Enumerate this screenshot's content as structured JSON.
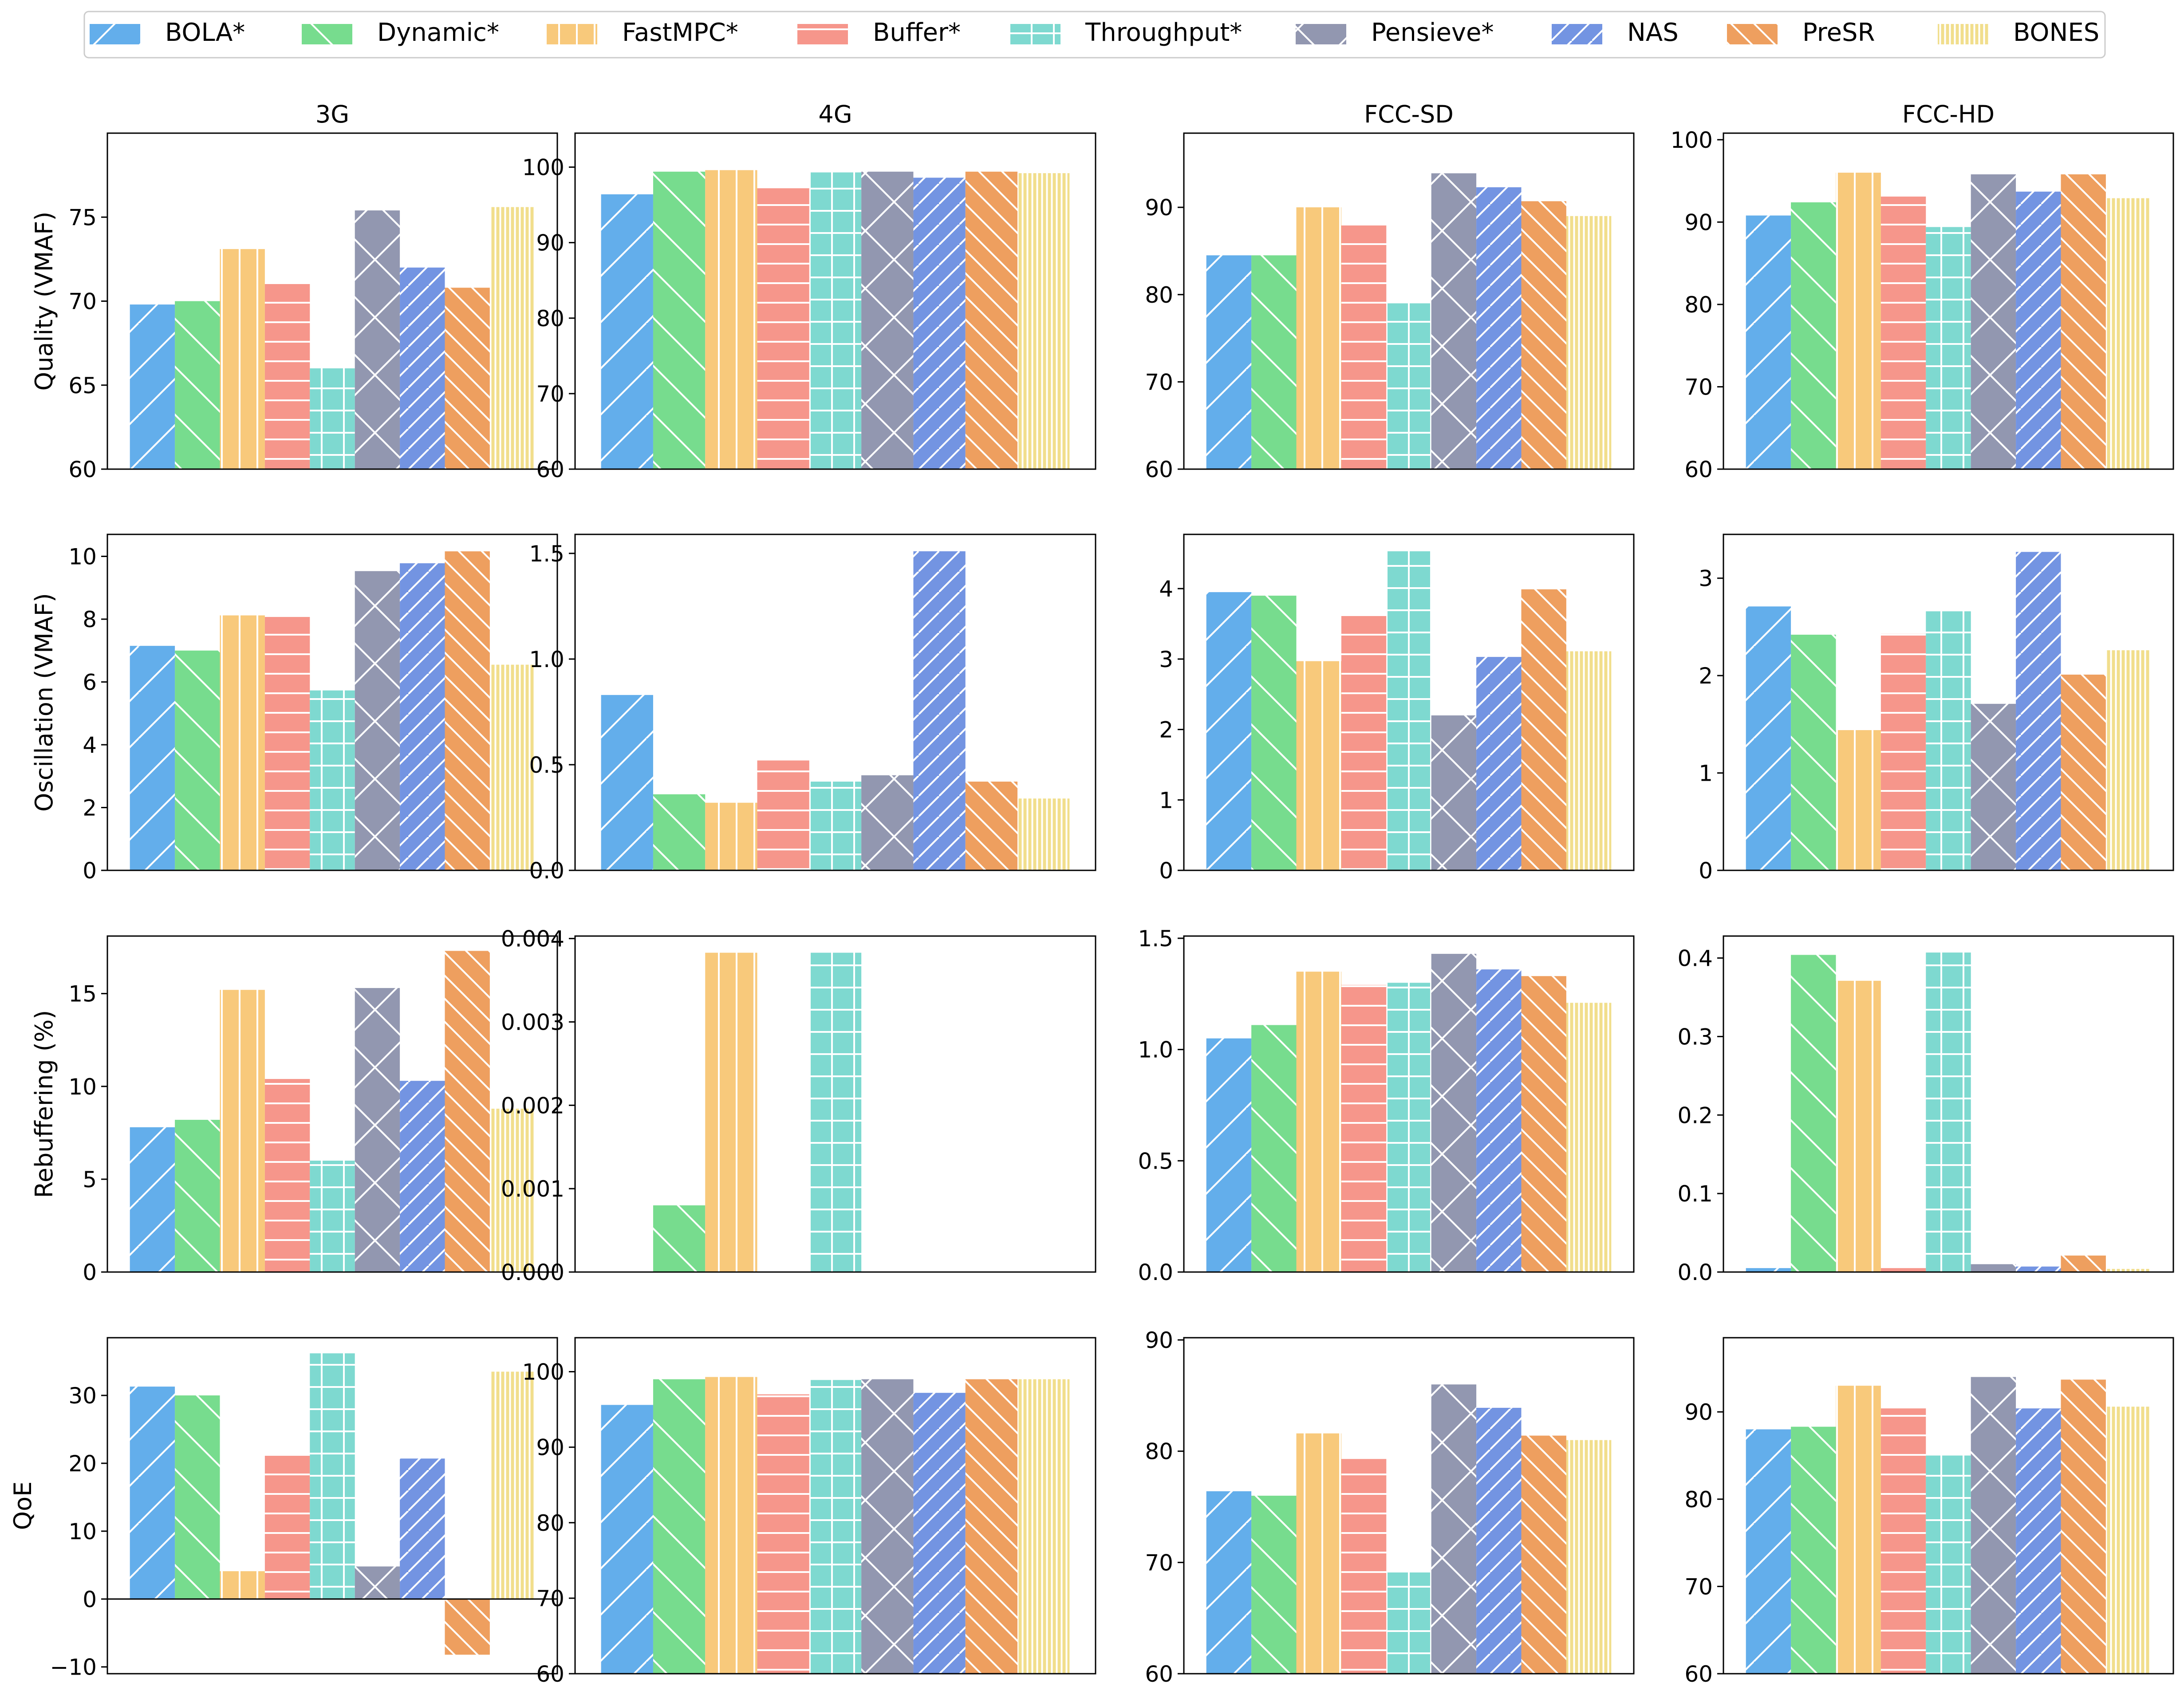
{
  "legend": {
    "items": [
      {
        "label": "BOLA*",
        "color": "#63aeeb",
        "hatch": "/"
      },
      {
        "label": "Dynamic*",
        "color": "#77dc8e",
        "hatch": "\\"
      },
      {
        "label": "FastMPC*",
        "color": "#f8c97b",
        "hatch": "|"
      },
      {
        "label": "Buffer*",
        "color": "#f6968b",
        "hatch": "-"
      },
      {
        "label": "Throughput*",
        "color": "#7ed9d0",
        "hatch": "+"
      },
      {
        "label": "Pensieve*",
        "color": "#9297b0",
        "hatch": "x"
      },
      {
        "label": "NAS",
        "color": "#7394e2",
        "hatch": "//"
      },
      {
        "label": "PreSR",
        "color": "#ee9f5f",
        "hatch": "\\\\"
      },
      {
        "label": "BONES",
        "color": "#f1de8c",
        "hatch": "||"
      }
    ]
  },
  "chart_data": {
    "type": "bar",
    "columns": [
      "3G",
      "4G",
      "FCC-SD",
      "FCC-HD"
    ],
    "rows": [
      "Quality (VMAF)",
      "Oscillation (VMAF)",
      "Rebuffering (%)",
      "QoE"
    ],
    "series_names": [
      "BOLA*",
      "Dynamic*",
      "FastMPC*",
      "Buffer*",
      "Throughput*",
      "Pensieve*",
      "NAS",
      "PreSR",
      "BONES"
    ],
    "panels": [
      {
        "row": 0,
        "col": 0,
        "ylabel": "Quality (VMAF)",
        "ylim": [
          60,
          80
        ],
        "yticks": [
          60,
          65,
          70,
          75
        ],
        "tick_labels": [
          "60",
          "65",
          "70",
          "75"
        ],
        "values": [
          69.8,
          70.0,
          73.1,
          71.1,
          66.0,
          75.4,
          72.0,
          70.8,
          75.6
        ]
      },
      {
        "row": 0,
        "col": 1,
        "ylabel": "",
        "ylim": [
          60,
          104.5
        ],
        "yticks": [
          60,
          70,
          80,
          90,
          100
        ],
        "tick_labels": [
          "60",
          "70",
          "80",
          "90",
          "100"
        ],
        "values": [
          96.4,
          99.4,
          99.6,
          97.2,
          99.3,
          99.4,
          98.6,
          99.4,
          99.2
        ]
      },
      {
        "row": 0,
        "col": 2,
        "ylabel": "",
        "ylim": [
          60,
          98.5
        ],
        "yticks": [
          60,
          70,
          80,
          90
        ],
        "tick_labels": [
          "60",
          "70",
          "80",
          "90"
        ],
        "values": [
          84.5,
          84.5,
          90.0,
          88.1,
          79.0,
          93.9,
          92.3,
          90.7,
          89.0
        ]
      },
      {
        "row": 0,
        "col": 3,
        "ylabel": "",
        "ylim": [
          60,
          100.8
        ],
        "yticks": [
          60,
          70,
          80,
          90,
          100
        ],
        "tick_labels": [
          "60",
          "70",
          "80",
          "90",
          "100"
        ],
        "values": [
          90.8,
          92.4,
          96.0,
          93.1,
          89.4,
          95.8,
          93.7,
          95.8,
          92.9
        ]
      },
      {
        "row": 1,
        "col": 0,
        "ylabel": "Oscillation (VMAF)",
        "ylim": [
          0,
          10.7
        ],
        "yticks": [
          0,
          2,
          4,
          6,
          8,
          10
        ],
        "tick_labels": [
          "0",
          "2",
          "4",
          "6",
          "8",
          "10"
        ],
        "values": [
          7.15,
          7.0,
          8.12,
          8.07,
          5.73,
          9.53,
          9.78,
          10.16,
          6.55
        ]
      },
      {
        "row": 1,
        "col": 1,
        "ylabel": "",
        "ylim": [
          0,
          1.59
        ],
        "yticks": [
          0,
          0.5,
          1.0,
          1.5
        ],
        "tick_labels": [
          "0.0",
          "0.5",
          "1.0",
          "1.5"
        ],
        "values": [
          0.83,
          0.36,
          0.32,
          0.52,
          0.42,
          0.45,
          1.51,
          0.42,
          0.34
        ]
      },
      {
        "row": 1,
        "col": 2,
        "ylabel": "",
        "ylim": [
          0,
          4.77
        ],
        "yticks": [
          0,
          1,
          2,
          3,
          4
        ],
        "tick_labels": [
          "0",
          "1",
          "2",
          "3",
          "4"
        ],
        "values": [
          3.95,
          3.9,
          2.97,
          3.63,
          4.53,
          2.2,
          3.03,
          3.99,
          3.11
        ]
      },
      {
        "row": 1,
        "col": 3,
        "ylabel": "",
        "ylim": [
          0,
          3.45
        ],
        "yticks": [
          0,
          1,
          2,
          3
        ],
        "tick_labels": [
          "0",
          "1",
          "2",
          "3"
        ],
        "values": [
          2.71,
          2.42,
          1.44,
          2.43,
          2.66,
          1.71,
          3.27,
          2.01,
          2.26
        ]
      },
      {
        "row": 2,
        "col": 0,
        "ylabel": "Rebuffering (%)",
        "ylim": [
          0,
          18.1
        ],
        "yticks": [
          0,
          5,
          10,
          15
        ],
        "tick_labels": [
          "0",
          "5",
          "10",
          "15"
        ],
        "values": [
          7.8,
          8.2,
          15.2,
          10.4,
          6.0,
          15.3,
          10.3,
          17.3,
          8.8
        ]
      },
      {
        "row": 2,
        "col": 1,
        "ylabel": "",
        "ylim": [
          0,
          0.00403
        ],
        "yticks": [
          0,
          0.001,
          0.002,
          0.003,
          0.004
        ],
        "tick_labels": [
          "0.000",
          "0.001",
          "0.002",
          "0.003",
          "0.004"
        ],
        "values": [
          0,
          0.0008,
          0.00383,
          0,
          0.00383,
          0,
          0,
          0,
          0
        ]
      },
      {
        "row": 2,
        "col": 2,
        "ylabel": "",
        "ylim": [
          0,
          1.51
        ],
        "yticks": [
          0,
          0.5,
          1.0,
          1.5
        ],
        "tick_labels": [
          "0.0",
          "0.5",
          "1.0",
          "1.5"
        ],
        "values": [
          1.05,
          1.11,
          1.35,
          1.29,
          1.3,
          1.43,
          1.36,
          1.33,
          1.21
        ]
      },
      {
        "row": 2,
        "col": 3,
        "ylabel": "",
        "ylim": [
          0,
          0.428
        ],
        "yticks": [
          0,
          0.1,
          0.2,
          0.3,
          0.4
        ],
        "tick_labels": [
          "0.0",
          "0.1",
          "0.2",
          "0.3",
          "0.4"
        ],
        "values": [
          0.005,
          0.404,
          0.371,
          0.005,
          0.407,
          0.01,
          0.007,
          0.021,
          0.004
        ]
      },
      {
        "row": 3,
        "col": 0,
        "ylabel": "QoE",
        "ylim": [
          -11,
          38.5
        ],
        "yticks": [
          -10,
          0,
          10,
          20,
          30
        ],
        "tick_labels": [
          "−10",
          "0",
          "10",
          "20",
          "30"
        ],
        "values": [
          31.3,
          30.0,
          4.1,
          21.3,
          36.2,
          4.8,
          20.7,
          -8.2,
          33.5
        ],
        "zero_line": true
      },
      {
        "row": 3,
        "col": 1,
        "ylabel": "",
        "ylim": [
          60,
          104.5
        ],
        "yticks": [
          60,
          70,
          80,
          90,
          100
        ],
        "tick_labels": [
          "60",
          "70",
          "80",
          "90",
          "100"
        ],
        "values": [
          95.6,
          99.0,
          99.3,
          97.0,
          98.9,
          99.0,
          97.2,
          99.0,
          99.0
        ]
      },
      {
        "row": 3,
        "col": 2,
        "ylabel": "",
        "ylim": [
          60,
          90.2
        ],
        "yticks": [
          60,
          70,
          80,
          90
        ],
        "tick_labels": [
          "60",
          "70",
          "80",
          "90"
        ],
        "values": [
          76.4,
          76.0,
          81.6,
          79.3,
          69.1,
          86.0,
          83.9,
          81.4,
          81.0
        ]
      },
      {
        "row": 3,
        "col": 3,
        "ylabel": "",
        "ylim": [
          60,
          98.5
        ],
        "yticks": [
          60,
          70,
          80,
          90
        ],
        "tick_labels": [
          "60",
          "70",
          "80",
          "90"
        ],
        "values": [
          88.0,
          88.3,
          93.0,
          90.4,
          85.0,
          94.0,
          90.4,
          93.7,
          90.6
        ]
      }
    ]
  }
}
